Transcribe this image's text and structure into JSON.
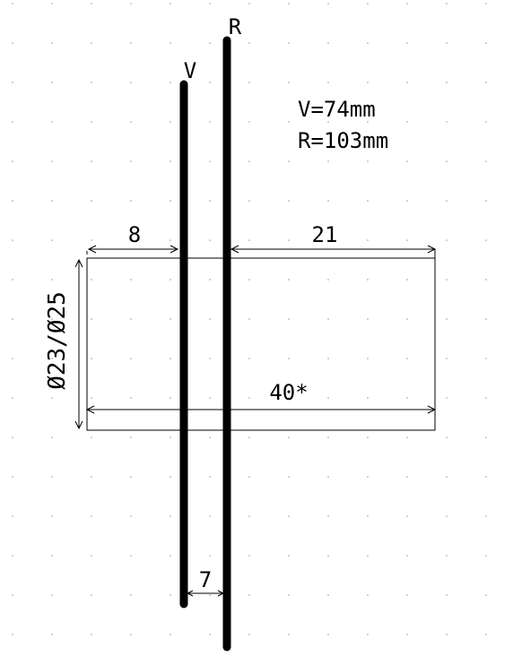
{
  "colors": {
    "background": "#ffffff",
    "ink": "#000000",
    "grid_dot": "#9a9a9a"
  },
  "rods": {
    "v_label": "V",
    "r_label": "R"
  },
  "info": {
    "line1": "V=74mm",
    "line2": "R=103mm"
  },
  "dimensions": {
    "left_offset": "8",
    "right_offset": "21",
    "diameter": "Ø23/Ø25",
    "length": "40*",
    "rod_spacing": "7"
  }
}
